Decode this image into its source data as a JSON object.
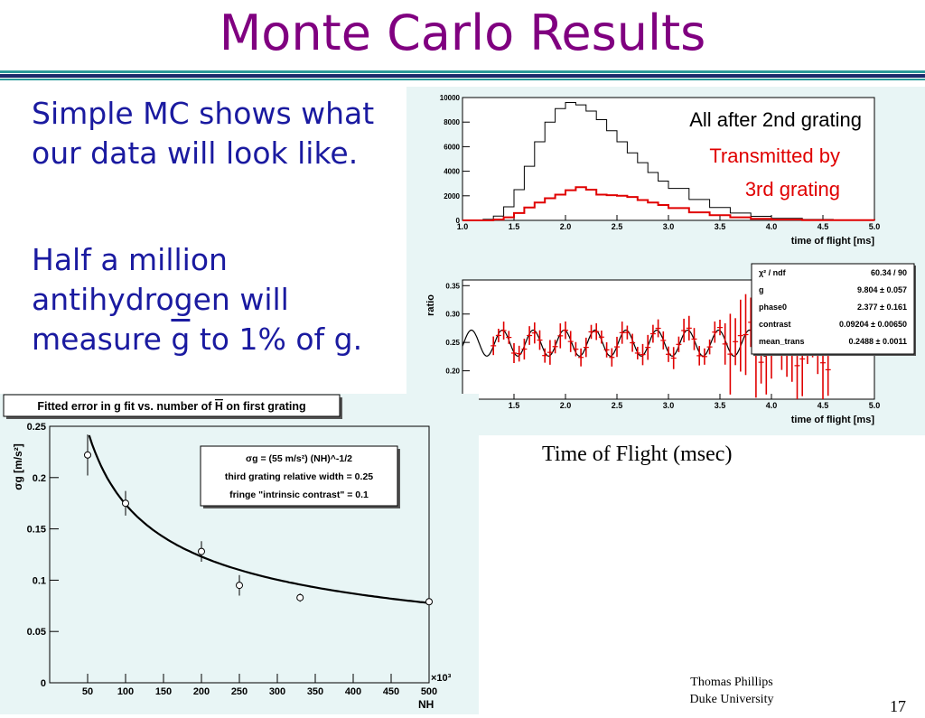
{
  "slide": {
    "title": "Monte Carlo Results",
    "bullet1": [
      "Simple MC shows what",
      "our data will look like."
    ],
    "bullet2_lines": [
      "Half a million",
      "antihydrogen will"
    ],
    "bullet2_last": {
      "prefix": "measure ",
      "gsym": "g",
      "suffix": " to 1% of g."
    },
    "caption": "Time of Flight (msec)",
    "footer_name": "Thomas Phillips",
    "footer_org": "Duke University",
    "page_number": "17"
  },
  "colors": {
    "title": "#800080",
    "bullet_text": "#1a1aa0",
    "rule_teal": "#2a9a9a",
    "rule_navy": "#1b2a6b",
    "panel_bg": "#e8f5f5",
    "red_series": "#e00000"
  },
  "chart_data": [
    {
      "type": "histogram",
      "xlabel": "time of flight [ms]",
      "xlim": [
        1.0,
        5.0
      ],
      "ylim": [
        0,
        10000
      ],
      "xticks": [
        "1.0",
        "1.5",
        "2.0",
        "2.5",
        "3.0",
        "3.5",
        "4.0",
        "4.5",
        "5.0"
      ],
      "yticks": [
        "0",
        "2000",
        "4000",
        "6000",
        "8000",
        "10000"
      ],
      "annotations": [
        "All after 2nd grating",
        "Transmitted by",
        "3rd grating"
      ],
      "series": [
        {
          "name": "All after 2nd grating",
          "color": "#000000",
          "x": [
            1.0,
            1.2,
            1.3,
            1.4,
            1.5,
            1.6,
            1.7,
            1.8,
            1.9,
            2.0,
            2.1,
            2.2,
            2.3,
            2.4,
            2.5,
            2.6,
            2.7,
            2.8,
            2.9,
            3.0,
            3.2,
            3.4,
            3.6,
            3.8,
            4.0,
            4.3,
            4.6,
            5.0
          ],
          "y": [
            0,
            80,
            350,
            1100,
            2500,
            4400,
            6400,
            8000,
            9100,
            9600,
            9400,
            8900,
            8200,
            7300,
            6400,
            5500,
            4700,
            3900,
            3200,
            2600,
            1700,
            1050,
            600,
            330,
            170,
            70,
            20,
            0
          ]
        },
        {
          "name": "Transmitted by 3rd grating",
          "color": "#e00000",
          "x": [
            1.0,
            1.3,
            1.4,
            1.5,
            1.6,
            1.7,
            1.8,
            1.9,
            2.0,
            2.1,
            2.2,
            2.3,
            2.4,
            2.5,
            2.6,
            2.7,
            2.8,
            2.9,
            3.0,
            3.2,
            3.4,
            3.6,
            3.8,
            4.0,
            4.3,
            5.0
          ],
          "y": [
            0,
            60,
            250,
            600,
            1050,
            1450,
            1800,
            2100,
            2450,
            2700,
            2500,
            2100,
            2050,
            2000,
            1900,
            1650,
            1450,
            1250,
            1000,
            650,
            420,
            250,
            130,
            60,
            20,
            0
          ]
        }
      ]
    },
    {
      "type": "scatter",
      "xlabel": "time of flight [ms]",
      "ylabel": "ratio",
      "xlim": [
        1.0,
        5.0
      ],
      "ylim": [
        0.15,
        0.36
      ],
      "xticks": [
        "1.0",
        "1.5",
        "2.0",
        "2.5",
        "3.0",
        "3.5",
        "4.0",
        "4.5",
        "5.0"
      ],
      "yticks": [
        "0.15",
        "0.20",
        "0.25",
        "0.30",
        "0.35"
      ],
      "stats": [
        {
          "label": "χ² / ndf",
          "value": "60.34 / 90"
        },
        {
          "label": "g",
          "value": "9.804 ± 0.057"
        },
        {
          "label": "phase0",
          "value": "2.377 ± 0.161"
        },
        {
          "label": "contrast",
          "value": "0.09204 ± 0.00650"
        },
        {
          "label": "mean_trans",
          "value": "0.2488 ± 0.0011"
        }
      ],
      "fit": {
        "mean": 0.2488,
        "contrast": 0.09204,
        "period_ms": 0.3,
        "phase": 2.377,
        "x_start": 1.0,
        "x_end": 4.0
      },
      "points": {
        "x_start": 1.3,
        "x_end": 4.55,
        "step": 0.05,
        "noise_error_small": 0.015,
        "noise_error_large": 0.06
      }
    },
    {
      "type": "scatter",
      "title": "Fitted error in g fit vs. number of H on first grating",
      "title_parts": {
        "before": "Fitted error in g fit vs. number of ",
        "overbar": "H",
        "after": " on first grating"
      },
      "ylabel": "σg [m/s²]",
      "xlabel": "NH",
      "x_multiplier": "×10³",
      "xlim": [
        0,
        500
      ],
      "ylim": [
        0,
        0.25
      ],
      "xticks": [
        "50",
        "100",
        "150",
        "200",
        "250",
        "300",
        "350",
        "400",
        "450",
        "500"
      ],
      "yticks": [
        "0",
        "0.05",
        "0.1",
        "0.15",
        "0.2",
        "0.25"
      ],
      "legend": [
        "σg = (55 m/s²) (NH)^-1/2",
        "third grating relative width = 0.25",
        "fringe \"intrinsic contrast\" = 0.1"
      ],
      "series": [
        {
          "name": "points",
          "x": [
            50,
            100,
            200,
            250,
            330,
            500
          ],
          "y": [
            0.222,
            0.175,
            0.128,
            0.095,
            0.083,
            0.079
          ],
          "err": [
            0.02,
            0.012,
            0.01,
            0.01,
            0.004,
            0.004
          ]
        },
        {
          "name": "fit",
          "coeff": 55
        }
      ]
    }
  ]
}
